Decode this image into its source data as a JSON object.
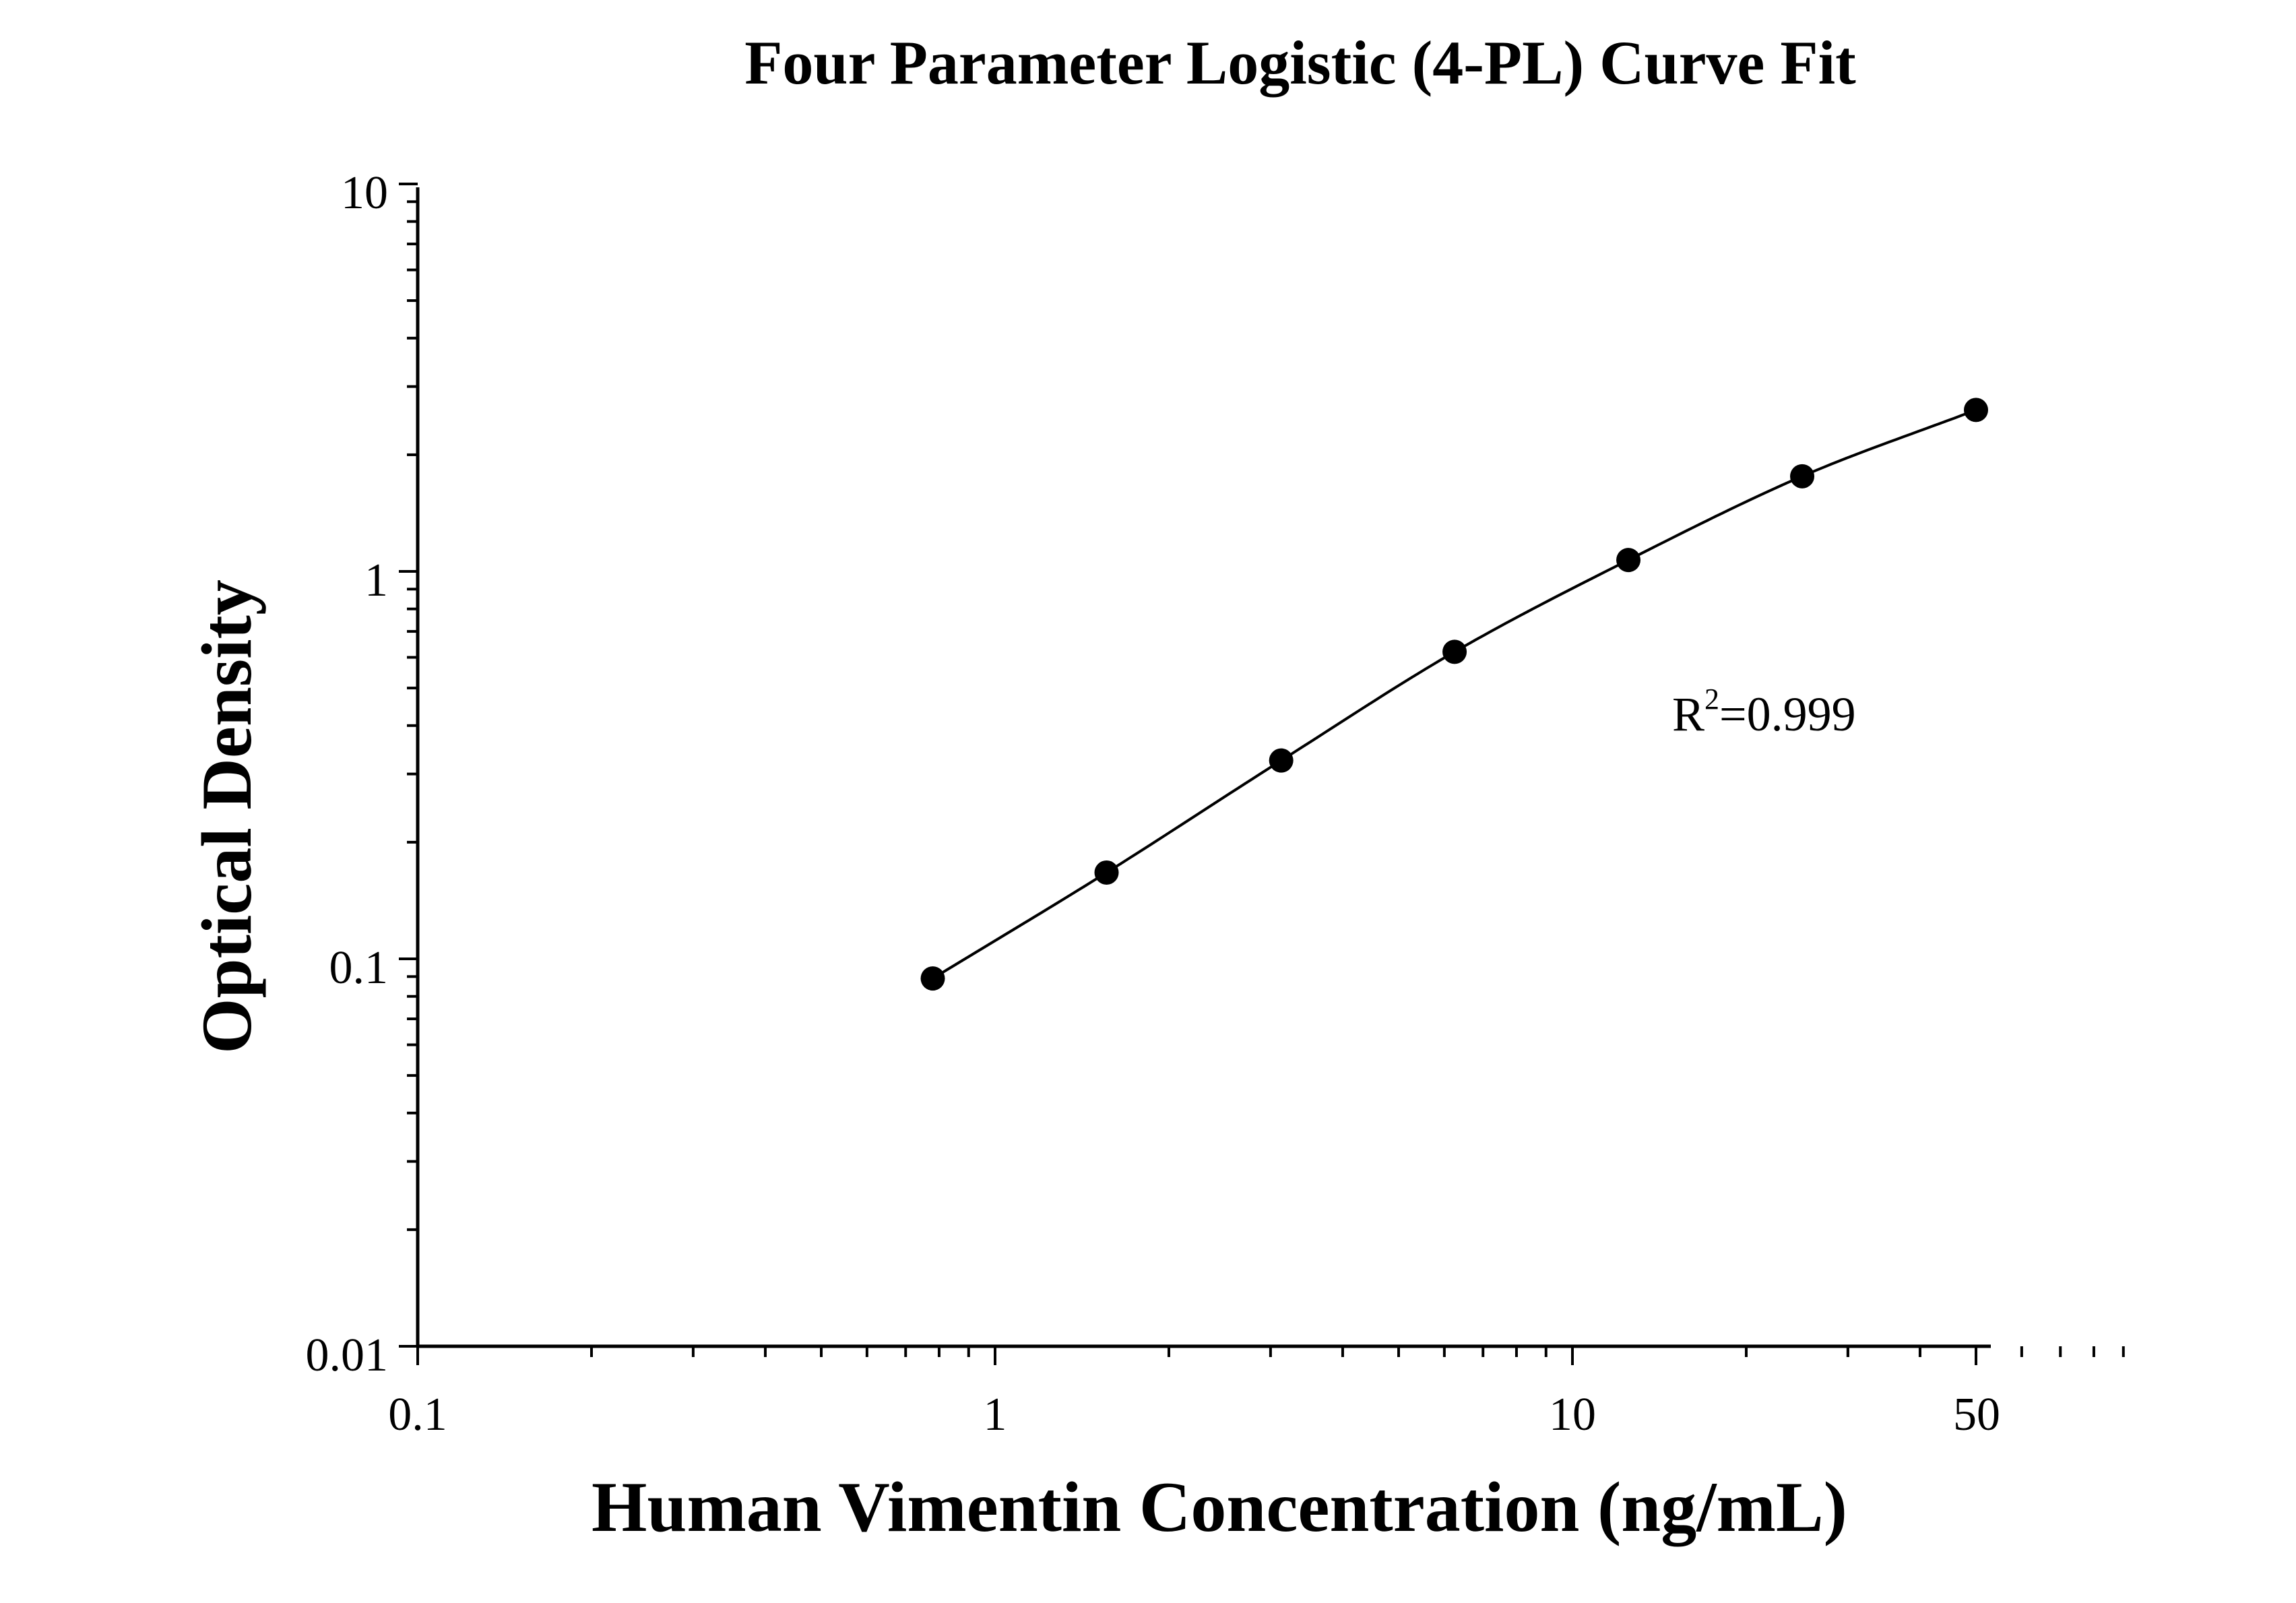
{
  "chart_data": {
    "type": "scatter",
    "title": "Four Parameter Logistic (4-PL) Curve Fit",
    "xlabel": "Human Vimentin Concentration (ng/mL)",
    "ylabel": "Optical Density",
    "x_scale": "log",
    "y_scale": "log",
    "xlim": [
      0.1,
      50
    ],
    "ylim": [
      0.01,
      10
    ],
    "x_tick_labels": [
      "0.1",
      "1",
      "10",
      "50"
    ],
    "y_tick_labels": [
      "0.01",
      "0.1",
      "1",
      "10"
    ],
    "grid": false,
    "legend": "none",
    "series": [
      {
        "x": [
          0.78,
          1.56,
          3.13,
          6.25,
          12.5,
          25,
          50
        ],
        "y": [
          0.089,
          0.167,
          0.325,
          0.62,
          1.07,
          1.76,
          2.61
        ],
        "marker": "filled-circle",
        "fit_curve": "4-PL"
      }
    ],
    "annotation": {
      "prefix": "R",
      "superscript": "2",
      "suffix": "=0.999"
    }
  }
}
